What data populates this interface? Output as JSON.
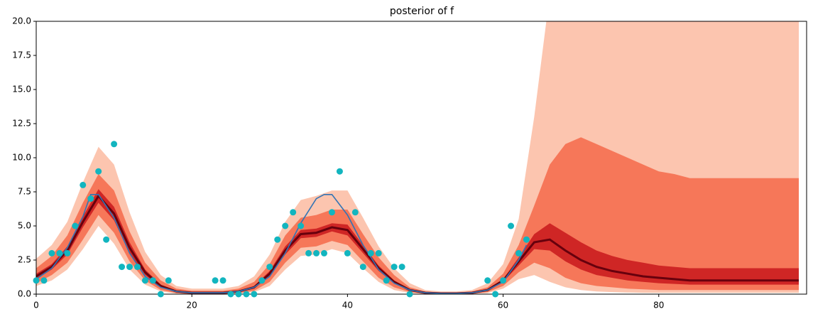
{
  "chart_data": {
    "type": "line",
    "title": "posterior of f",
    "xlim": [
      0,
      99
    ],
    "ylim": [
      0,
      20
    ],
    "xticks": [
      0,
      20,
      40,
      60,
      80
    ],
    "yticks": [
      {
        "value": 0,
        "label": "0.0"
      },
      {
        "value": 2.5,
        "label": "2.5"
      },
      {
        "value": 5,
        "label": "5.0"
      },
      {
        "value": 7.5,
        "label": "7.5"
      },
      {
        "value": 10,
        "label": "10.0"
      },
      {
        "value": 12.5,
        "label": "12.5"
      },
      {
        "value": 15,
        "label": "15.0"
      },
      {
        "value": 17.5,
        "label": "17.5"
      },
      {
        "value": 20,
        "label": "20.0"
      }
    ],
    "posterior": {
      "x": [
        0,
        2,
        4,
        6,
        8,
        10,
        12,
        14,
        16,
        18,
        20,
        22,
        24,
        26,
        28,
        30,
        32,
        34,
        36,
        38,
        40,
        42,
        44,
        46,
        48,
        50,
        52,
        54,
        56,
        58,
        60,
        62,
        64,
        66,
        68,
        70,
        72,
        74,
        76,
        78,
        80,
        82,
        84,
        86,
        88,
        90,
        92,
        94,
        96,
        98
      ],
      "bands": [
        {
          "color": "#fcbba1",
          "lower": [
            0.6,
            1.0,
            1.8,
            3.3,
            5.0,
            3.7,
            1.8,
            0.7,
            0.2,
            0.04,
            0.01,
            0.01,
            0.01,
            0.04,
            0.15,
            0.6,
            1.8,
            2.8,
            2.9,
            3.3,
            3.0,
            1.9,
            0.9,
            0.3,
            0.08,
            0.02,
            0.005,
            0.005,
            0.02,
            0.08,
            0.4,
            1.1,
            1.4,
            0.9,
            0.5,
            0.3,
            0.2,
            0.15,
            0.12,
            0.1,
            0.1,
            0.1,
            0.1,
            0.1,
            0.1,
            0.1,
            0.1,
            0.1,
            0.1,
            0.1
          ],
          "upper": [
            2.6,
            3.6,
            5.3,
            8.2,
            10.8,
            9.5,
            6.0,
            3.1,
            1.4,
            0.6,
            0.4,
            0.4,
            0.4,
            0.6,
            1.3,
            2.9,
            5.3,
            6.9,
            7.2,
            7.6,
            7.6,
            5.6,
            3.5,
            1.9,
            0.8,
            0.3,
            0.2,
            0.2,
            0.3,
            0.8,
            2.2,
            5.5,
            13,
            22,
            30,
            32,
            32,
            32,
            32,
            32,
            32,
            32,
            32,
            32,
            32,
            32,
            32,
            32,
            32,
            32
          ]
        },
        {
          "color": "#f5684a",
          "lower": [
            0.8,
            1.4,
            2.3,
            4.0,
            5.8,
            4.5,
            2.4,
            1.0,
            0.3,
            0.08,
            0.02,
            0.02,
            0.02,
            0.08,
            0.25,
            0.9,
            2.3,
            3.4,
            3.5,
            3.9,
            3.6,
            2.4,
            1.2,
            0.5,
            0.15,
            0.04,
            0.01,
            0.01,
            0.04,
            0.15,
            0.6,
            1.6,
            2.3,
            1.9,
            1.2,
            0.8,
            0.6,
            0.5,
            0.4,
            0.35,
            0.3,
            0.3,
            0.3,
            0.3,
            0.3,
            0.3,
            0.3,
            0.3,
            0.3,
            0.3
          ],
          "upper": [
            1.9,
            2.8,
            4.3,
            6.7,
            8.8,
            7.6,
            4.6,
            2.3,
            1.0,
            0.4,
            0.25,
            0.25,
            0.25,
            0.4,
            0.9,
            2.2,
            4.3,
            5.6,
            5.8,
            6.2,
            6.2,
            4.4,
            2.7,
            1.4,
            0.5,
            0.2,
            0.12,
            0.12,
            0.2,
            0.5,
            1.5,
            3.6,
            6.5,
            9.5,
            11.0,
            11.5,
            11.0,
            10.5,
            10.0,
            9.5,
            9.0,
            8.8,
            8.5,
            8.5,
            8.5,
            8.5,
            8.5,
            8.5,
            8.5,
            8.5
          ]
        },
        {
          "color": "#c8171c",
          "lower": [
            1.1,
            1.8,
            2.9,
            4.9,
            6.7,
            5.4,
            3.0,
            1.4,
            0.5,
            0.15,
            0.05,
            0.05,
            0.05,
            0.15,
            0.4,
            1.3,
            2.9,
            4.1,
            4.2,
            4.6,
            4.3,
            3.0,
            1.7,
            0.8,
            0.25,
            0.08,
            0.03,
            0.03,
            0.08,
            0.25,
            0.9,
            2.1,
            3.3,
            3.2,
            2.4,
            1.8,
            1.4,
            1.2,
            1.0,
            0.9,
            0.8,
            0.75,
            0.7,
            0.7,
            0.7,
            0.7,
            0.7,
            0.7,
            0.7,
            0.7
          ],
          "upper": [
            1.5,
            2.2,
            3.5,
            5.7,
            7.7,
            6.4,
            3.8,
            1.8,
            0.7,
            0.25,
            0.15,
            0.15,
            0.15,
            0.25,
            0.6,
            1.7,
            3.5,
            4.7,
            4.8,
            5.2,
            5.1,
            3.6,
            2.1,
            1.0,
            0.35,
            0.12,
            0.07,
            0.07,
            0.12,
            0.35,
            1.1,
            2.7,
            4.4,
            5.2,
            4.5,
            3.8,
            3.2,
            2.8,
            2.5,
            2.3,
            2.1,
            2.0,
            1.9,
            1.9,
            1.9,
            1.9,
            1.9,
            1.9,
            1.9,
            1.9
          ]
        }
      ],
      "median": {
        "color": "#67000d",
        "values": [
          1.3,
          2.0,
          3.2,
          5.3,
          7.2,
          5.9,
          3.4,
          1.6,
          0.6,
          0.2,
          0.1,
          0.1,
          0.1,
          0.2,
          0.5,
          1.5,
          3.2,
          4.4,
          4.5,
          4.9,
          4.7,
          3.3,
          1.9,
          0.9,
          0.3,
          0.1,
          0.05,
          0.05,
          0.1,
          0.3,
          1.0,
          2.4,
          3.8,
          4.0,
          3.2,
          2.5,
          2.0,
          1.7,
          1.5,
          1.3,
          1.2,
          1.1,
          1.0,
          1.0,
          1.0,
          1.0,
          1.0,
          1.0,
          1.0,
          1.0
        ]
      }
    },
    "truth": {
      "color": "#3274b5",
      "x": [
        0,
        2,
        4,
        6,
        7,
        8,
        10,
        12,
        14,
        16,
        18,
        20,
        22,
        24,
        26,
        28,
        30,
        32,
        34,
        36,
        37,
        38,
        40,
        42,
        44,
        46,
        48,
        50,
        52,
        54,
        56,
        58,
        60,
        62,
        63
      ],
      "values": [
        1.1,
        1.9,
        3.4,
        5.7,
        7.3,
        7.3,
        5.6,
        3.0,
        1.3,
        0.5,
        0.2,
        0.1,
        0.1,
        0.1,
        0.2,
        0.5,
        1.3,
        3.0,
        5.2,
        7.0,
        7.3,
        7.3,
        5.8,
        3.6,
        1.8,
        0.8,
        0.3,
        0.1,
        0.05,
        0.05,
        0.1,
        0.3,
        0.9,
        2.5,
        3.6
      ]
    },
    "observed": {
      "color": "#12b5bf",
      "x": [
        0,
        1,
        2,
        3,
        4,
        5,
        6,
        7,
        8,
        9,
        10,
        11,
        12,
        13,
        14,
        15,
        16,
        17,
        23,
        24,
        25,
        26,
        27,
        28,
        29,
        30,
        31,
        32,
        33,
        34,
        35,
        36,
        37,
        38,
        39,
        40,
        41,
        42,
        43,
        44,
        45,
        46,
        47,
        48,
        58,
        59,
        60,
        61,
        62,
        63
      ],
      "values": [
        1,
        1,
        3,
        3,
        3,
        5,
        8,
        7,
        9,
        4,
        11,
        2,
        2,
        2,
        1,
        1,
        0,
        1,
        1,
        1,
        0,
        0,
        0,
        0,
        1,
        2,
        4,
        5,
        6,
        5,
        3,
        3,
        3,
        6,
        9,
        3,
        6,
        2,
        3,
        3,
        1,
        2,
        2,
        0,
        1,
        0,
        1,
        5,
        3,
        4
      ]
    }
  }
}
